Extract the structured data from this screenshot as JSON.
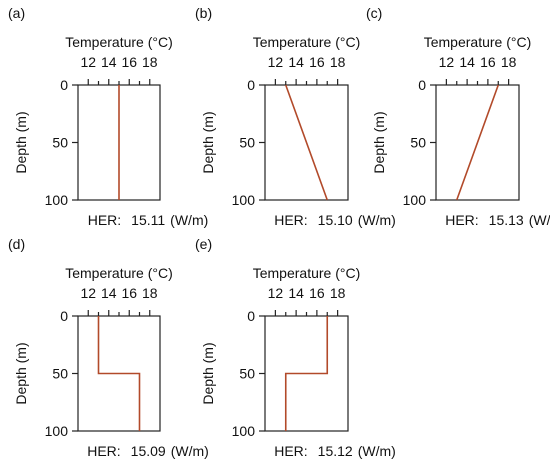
{
  "chart_data": [
    {
      "panel": "(a)",
      "type": "line",
      "xlabel": "Temperature (°C)",
      "ylabel": "Depth (m)",
      "xlim": [
        11,
        19
      ],
      "ylim": [
        0,
        100
      ],
      "xticks": [
        12,
        14,
        16,
        18
      ],
      "yticks": [
        0,
        50,
        100
      ],
      "x_axis_position": "top",
      "y_inverted": true,
      "grid": false,
      "series": [
        {
          "x": [
            15,
            15
          ],
          "y": [
            0,
            100
          ]
        }
      ],
      "color": "#b24a2a",
      "annotation": {
        "label": "HER:",
        "value": "15.11",
        "unit": "(W/m)"
      }
    },
    {
      "panel": "(b)",
      "type": "line",
      "xlabel": "Temperature (°C)",
      "ylabel": "Depth (m)",
      "xlim": [
        11,
        19
      ],
      "ylim": [
        0,
        100
      ],
      "xticks": [
        12,
        14,
        16,
        18
      ],
      "yticks": [
        0,
        50,
        100
      ],
      "x_axis_position": "top",
      "y_inverted": true,
      "grid": false,
      "series": [
        {
          "x": [
            13,
            17
          ],
          "y": [
            0,
            100
          ]
        }
      ],
      "color": "#b24a2a",
      "annotation": {
        "label": "HER:",
        "value": "15.10",
        "unit": "(W/m)"
      }
    },
    {
      "panel": "(c)",
      "type": "line",
      "xlabel": "Temperature (°C)",
      "ylabel": "Depth (m)",
      "xlim": [
        11,
        19
      ],
      "ylim": [
        0,
        100
      ],
      "xticks": [
        12,
        14,
        16,
        18
      ],
      "yticks": [
        0,
        50,
        100
      ],
      "x_axis_position": "top",
      "y_inverted": true,
      "grid": false,
      "series": [
        {
          "x": [
            17,
            13
          ],
          "y": [
            0,
            100
          ]
        }
      ],
      "color": "#b24a2a",
      "annotation": {
        "label": "HER:",
        "value": "15.13",
        "unit": "(W/m)"
      }
    },
    {
      "panel": "(d)",
      "type": "line",
      "xlabel": "Temperature (°C)",
      "ylabel": "Depth (m)",
      "xlim": [
        11,
        19
      ],
      "ylim": [
        0,
        100
      ],
      "xticks": [
        12,
        14,
        16,
        18
      ],
      "yticks": [
        0,
        50,
        100
      ],
      "x_axis_position": "top",
      "y_inverted": true,
      "grid": false,
      "series": [
        {
          "x": [
            13,
            13,
            17,
            17
          ],
          "y": [
            0,
            50,
            50,
            100
          ]
        }
      ],
      "color": "#b24a2a",
      "annotation": {
        "label": "HER:",
        "value": "15.09",
        "unit": "(W/m)"
      }
    },
    {
      "panel": "(e)",
      "type": "line",
      "xlabel": "Temperature (°C)",
      "ylabel": "Depth (m)",
      "xlim": [
        11,
        19
      ],
      "ylim": [
        0,
        100
      ],
      "xticks": [
        12,
        14,
        16,
        18
      ],
      "yticks": [
        0,
        50,
        100
      ],
      "x_axis_position": "top",
      "y_inverted": true,
      "grid": false,
      "series": [
        {
          "x": [
            17,
            17,
            13,
            13
          ],
          "y": [
            0,
            50,
            50,
            100
          ]
        }
      ],
      "color": "#b24a2a",
      "annotation": {
        "label": "HER:",
        "value": "15.12",
        "unit": "(W/m)"
      }
    }
  ]
}
